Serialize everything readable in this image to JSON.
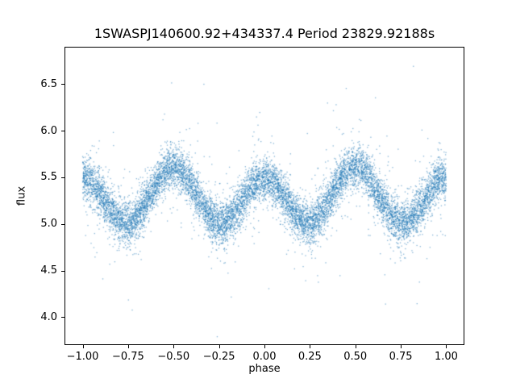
{
  "chart_data": {
    "type": "scatter",
    "title": "1SWASPJ140600.92+434337.4 Period 23829.92188s",
    "xlabel": "phase",
    "ylabel": "flux",
    "xlim": [
      -1.1,
      1.1
    ],
    "ylim": [
      3.7,
      6.9
    ],
    "grid": false,
    "legend": null,
    "xticks": [
      {
        "value": -1.0,
        "label": "−1.00"
      },
      {
        "value": -0.75,
        "label": "−0.75"
      },
      {
        "value": -0.5,
        "label": "−0.50"
      },
      {
        "value": -0.25,
        "label": "−0.25"
      },
      {
        "value": 0.0,
        "label": "0.00"
      },
      {
        "value": 0.25,
        "label": "0.25"
      },
      {
        "value": 0.5,
        "label": "0.50"
      },
      {
        "value": 0.75,
        "label": "0.75"
      },
      {
        "value": 1.0,
        "label": "1.00"
      }
    ],
    "yticks": [
      {
        "value": 4.0,
        "label": "4.0"
      },
      {
        "value": 4.5,
        "label": "4.5"
      },
      {
        "value": 5.0,
        "label": "5.0"
      },
      {
        "value": 5.5,
        "label": "5.5"
      },
      {
        "value": 6.0,
        "label": "6.0"
      },
      {
        "value": 6.5,
        "label": "6.5"
      }
    ],
    "marker": {
      "color": "#1f77b4",
      "alpha": 0.55,
      "size": 1.3
    },
    "n_points": 11000,
    "seed": 42,
    "phase_range": [
      -1.0,
      1.0
    ],
    "model": {
      "description": "double-humped phase-folded light curve: flux(phase) = base + amp4*cos(4*pi*phase) + amp2*cos(2*pi*phase); peaks ~5.5-5.6 at phase 0, +/-0.5, +/-1.0; troughs ~5.0 at +/-0.25, +/-0.75",
      "base": 5.28,
      "amp4": 0.27,
      "amp2": -0.06
    },
    "noise": {
      "core_sigma": 0.11,
      "core_frac": 0.9,
      "mid_sigma": 0.26,
      "mid_frac": 0.085,
      "outlier_sigma": 0.55
    },
    "mean_curve": {
      "phase": [
        -1.0,
        -0.95,
        -0.9,
        -0.85,
        -0.8,
        -0.75,
        -0.7,
        -0.65,
        -0.6,
        -0.55,
        -0.5,
        -0.45,
        -0.4,
        -0.35,
        -0.3,
        -0.25,
        -0.2,
        -0.15,
        -0.1,
        -0.05,
        0.0,
        0.05,
        0.1,
        0.15,
        0.2,
        0.25,
        0.3,
        0.35,
        0.4,
        0.45,
        0.5,
        0.55,
        0.6,
        0.65,
        0.7,
        0.75,
        0.8,
        0.85,
        0.9,
        0.95,
        1.0
      ],
      "flux": [
        5.49,
        5.441,
        5.315,
        5.161,
        5.043,
        5.01,
        5.08,
        5.232,
        5.412,
        5.556,
        5.61,
        5.556,
        5.412,
        5.232,
        5.08,
        5.01,
        5.043,
        5.161,
        5.315,
        5.441,
        5.49,
        5.441,
        5.315,
        5.161,
        5.043,
        5.01,
        5.08,
        5.232,
        5.412,
        5.556,
        5.61,
        5.556,
        5.412,
        5.232,
        5.08,
        5.01,
        5.043,
        5.161,
        5.315,
        5.441,
        5.49
      ]
    }
  }
}
